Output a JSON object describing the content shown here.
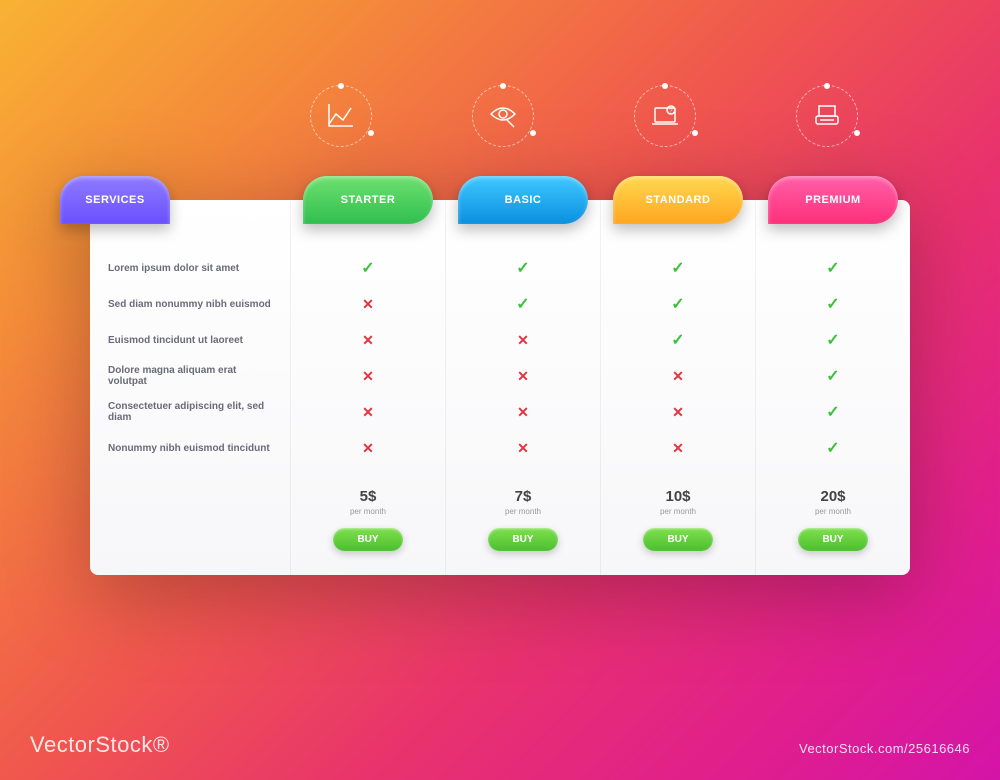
{
  "background_gradient": [
    "#f9b233",
    "#f48a3a",
    "#f0564e",
    "#e8326d",
    "#e01e8e",
    "#d414a8"
  ],
  "services_label": "Services",
  "features": [
    "Lorem ipsum dolor sit amet",
    "Sed diam nonummy nibh euismod",
    "Euismod tincidunt ut laoreet",
    "Dolore magna aliquam erat volutpat",
    "Consectetuer adipiscing elit, sed diam",
    "Nonummy nibh euismod tincidunt"
  ],
  "tab_colors": {
    "services": {
      "from": "#8f7bff",
      "to": "#6a4fff"
    },
    "starter": {
      "from": "#6fe06f",
      "to": "#2fbf4f"
    },
    "basic": {
      "from": "#3fc8ff",
      "to": "#0a8fe0"
    },
    "standard": {
      "from": "#ffd84f",
      "to": "#ffa51f"
    },
    "premium": {
      "from": "#ff5fa8",
      "to": "#ff2f7a"
    }
  },
  "plans": [
    {
      "key": "starter",
      "label": "Starter",
      "price": "5$",
      "period": "per month",
      "btn": "Buy",
      "values": [
        true,
        false,
        false,
        false,
        false,
        false
      ]
    },
    {
      "key": "basic",
      "label": "Basic",
      "price": "7$",
      "period": "per month",
      "btn": "Buy",
      "values": [
        true,
        true,
        false,
        false,
        false,
        false
      ]
    },
    {
      "key": "standard",
      "label": "Standard",
      "price": "10$",
      "period": "per month",
      "btn": "Buy",
      "values": [
        true,
        true,
        true,
        false,
        false,
        false
      ]
    },
    {
      "key": "premium",
      "label": "Premium",
      "price": "20$",
      "period": "per month",
      "btn": "Buy",
      "values": [
        true,
        true,
        true,
        true,
        true,
        true
      ]
    }
  ],
  "buy_button_gradient": {
    "from": "#7fe04f",
    "to": "#4bbf2e"
  },
  "check_color": "#3fbf3f",
  "cross_color": "#e6323c",
  "text_color": "#6a6a78",
  "watermark_left": "VectorStock®",
  "watermark_right": "VectorStock.com/25616646",
  "watermark_diag": "VectorStock®"
}
